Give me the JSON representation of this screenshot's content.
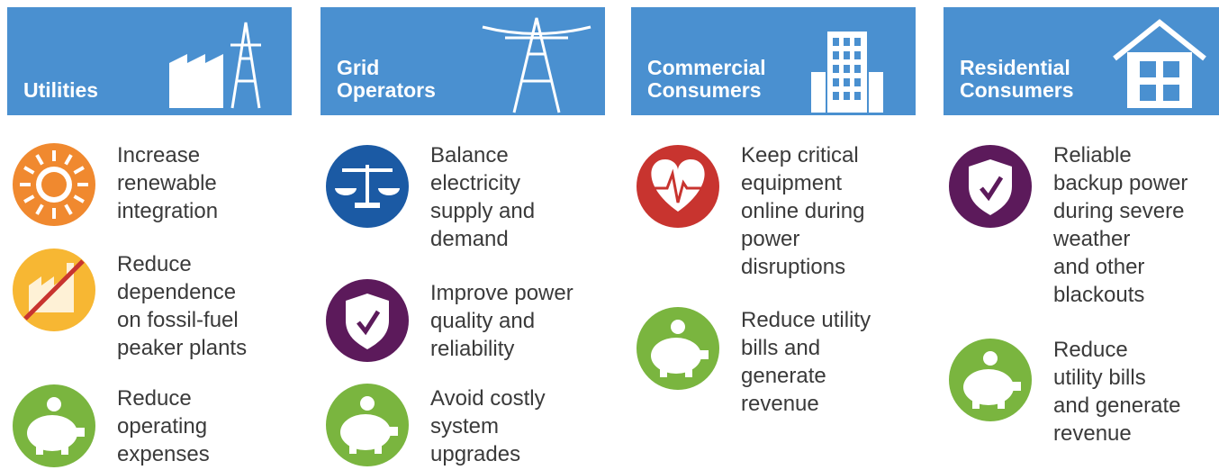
{
  "columns": [
    {
      "title": [
        "Utilities"
      ],
      "items": [
        {
          "text": [
            "Increase",
            "renewable",
            "integration"
          ]
        },
        {
          "text": [
            "Reduce",
            "dependence",
            "on fossil-fuel",
            "peaker plants"
          ]
        },
        {
          "text": [
            "Reduce",
            "operating",
            "expenses"
          ]
        }
      ]
    },
    {
      "title": [
        "Grid",
        "Operators"
      ],
      "items": [
        {
          "text": [
            "Balance",
            "electricity",
            "supply and",
            "demand"
          ]
        },
        {
          "text": [
            "Improve power",
            "quality and",
            "reliability"
          ]
        },
        {
          "text": [
            "Avoid costly",
            "system",
            "upgrades"
          ]
        }
      ]
    },
    {
      "title": [
        "Commercial",
        "Consumers"
      ],
      "items": [
        {
          "text": [
            "Keep critical",
            "equipment",
            "online during",
            "power",
            "disruptions"
          ]
        },
        {
          "text": [
            "Reduce utility",
            "bills and",
            "generate",
            "revenue"
          ]
        }
      ]
    },
    {
      "title": [
        "Residential",
        "Consumers"
      ],
      "items": [
        {
          "text": [
            "Reliable",
            "backup power",
            "during severe",
            "weather",
            "and other",
            "blackouts"
          ]
        },
        {
          "text": [
            "Reduce",
            "utility bills",
            "and generate",
            "revenue"
          ]
        }
      ]
    }
  ]
}
